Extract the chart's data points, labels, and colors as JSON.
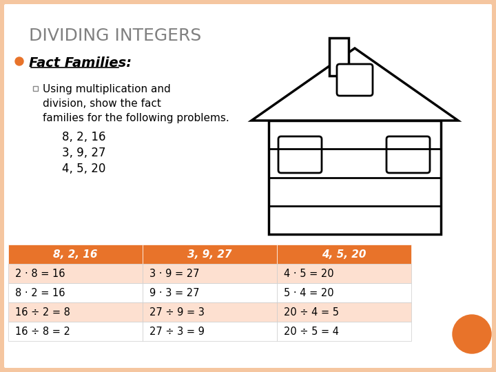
{
  "title": "DIVIDING INTEGERS",
  "title_color": "#808080",
  "bg_color": "#f5c6a0",
  "slide_bg": "#ffffff",
  "bullet_head": "Fact Families:",
  "bullet_sub": "Using multiplication and\ndivision, show the fact\nfamilies for the following problems.",
  "bullet_items": [
    "8, 2, 16",
    "3, 9, 27",
    "4, 5, 20"
  ],
  "table_headers": [
    "8, 2, 16",
    "3, 9, 27",
    "4, 5, 20"
  ],
  "header_bg": "#e8732a",
  "header_text": "#ffffff",
  "row_bg_odd": "#fde0d0",
  "row_bg_even": "#ffffff",
  "table_text_color": "#000000",
  "table_rows": [
    [
      "2 · 8 = 16",
      "3 · 9 = 27",
      "4 · 5 = 20"
    ],
    [
      "8 · 2 = 16",
      "9 · 3 = 27",
      "5 · 4 = 20"
    ],
    [
      "16 ÷ 2 = 8",
      "27 ÷ 9 = 3",
      "20 ÷ 4 = 5"
    ],
    [
      "16 ÷ 8 = 2",
      "27 ÷ 3 = 9",
      "20 ÷ 5 = 4"
    ]
  ],
  "house_color": "#000000",
  "circle_color": "#e8732a",
  "orange_bullet_color": "#e8732a"
}
